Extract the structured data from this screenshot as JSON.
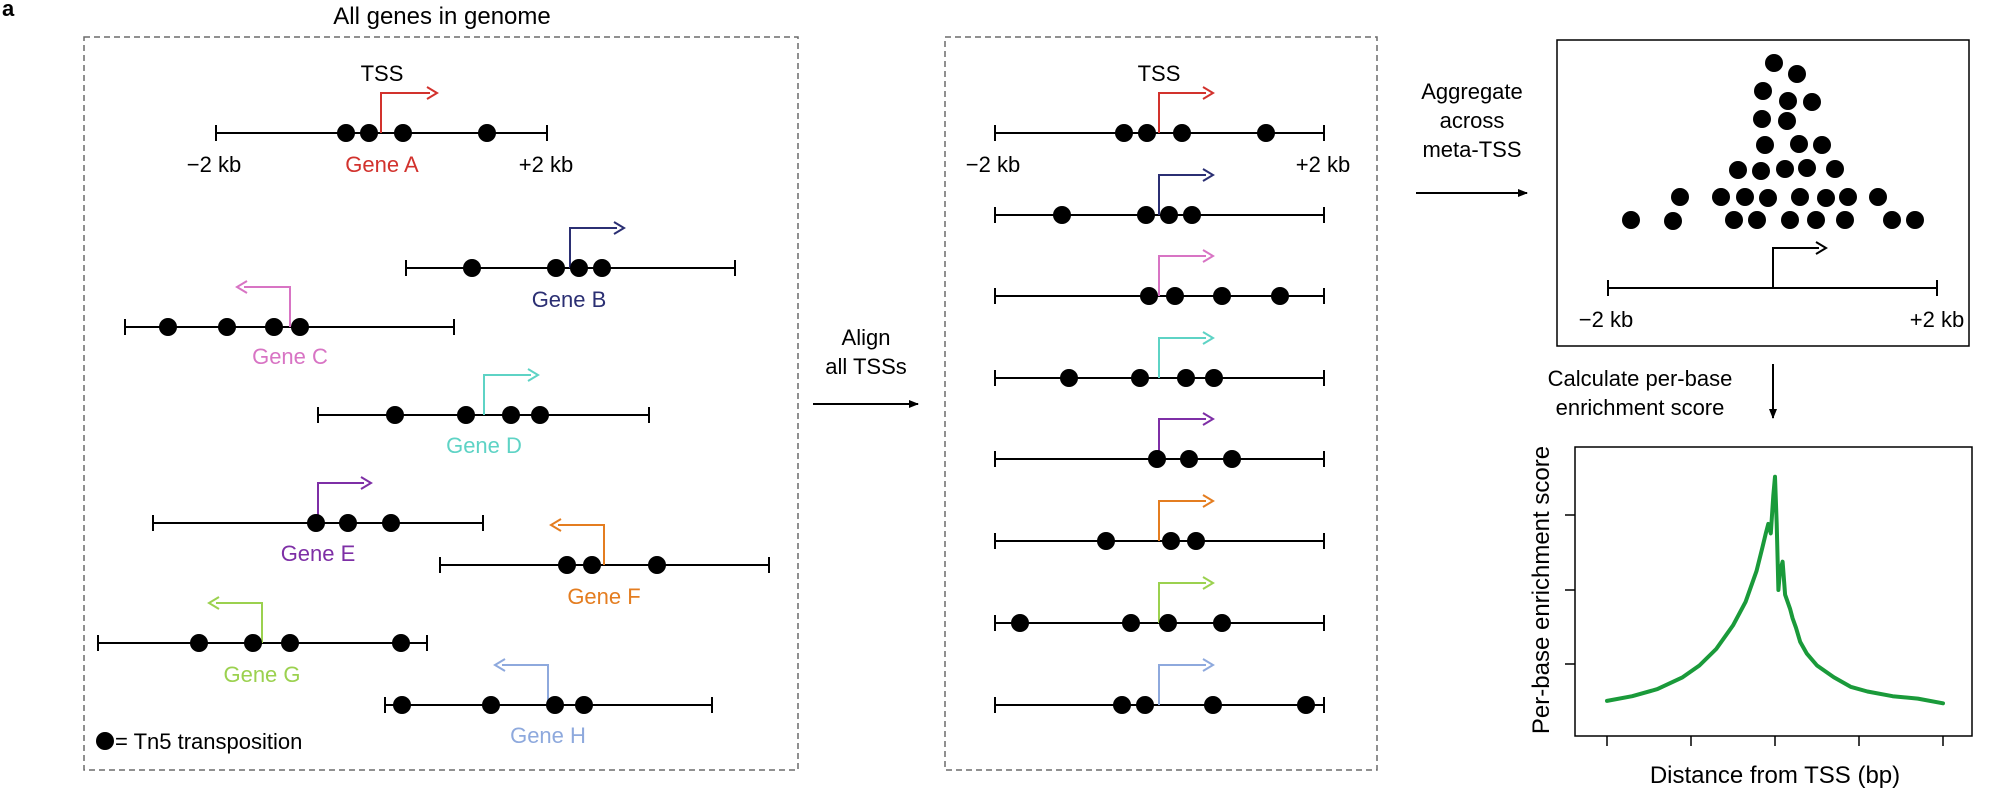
{
  "panel_label": "a",
  "colors": {
    "black": "#000000",
    "gene_a": "#d2322d",
    "gene_b": "#2b2f73",
    "gene_c": "#d874c4",
    "gene_d": "#5ed3c5",
    "gene_e": "#7e2fa6",
    "gene_f": "#e47d20",
    "gene_g": "#9bd14f",
    "gene_h": "#8ea9dd",
    "curve": "#1a9a3a",
    "frame_dashed": "#6b6b6b"
  },
  "genome_panel": {
    "title": "All genes in genome",
    "tss_label": "TSS",
    "left_tick_label": "−2 kb",
    "right_tick_label": "+2 kb",
    "legend_label": "= Tn5 transposition",
    "genes": [
      {
        "label": "Gene A",
        "color_key": "gene_a",
        "direction": "right"
      },
      {
        "label": "Gene B",
        "color_key": "gene_b",
        "direction": "right"
      },
      {
        "label": "Gene C",
        "color_key": "gene_c",
        "direction": "left"
      },
      {
        "label": "Gene D",
        "color_key": "gene_d",
        "direction": "right"
      },
      {
        "label": "Gene E",
        "color_key": "gene_e",
        "direction": "right"
      },
      {
        "label": "Gene F",
        "color_key": "gene_f",
        "direction": "left"
      },
      {
        "label": "Gene G",
        "color_key": "gene_g",
        "direction": "left"
      },
      {
        "label": "Gene H",
        "color_key": "gene_h",
        "direction": "right"
      }
    ]
  },
  "align_step": {
    "line1": "Align",
    "line2": "all TSSs"
  },
  "aligned_panel": {
    "tss_label": "TSS",
    "left_tick_label": "−2 kb",
    "right_tick_label": "+2 kb"
  },
  "aggregate_step": {
    "line1": "Aggregate",
    "line2": "across",
    "line3": "meta-TSS"
  },
  "meta_panel": {
    "left_tick_label": "−2 kb",
    "right_tick_label": "+2 kb"
  },
  "score_step": {
    "line1": "Calculate per-base",
    "line2": "enrichment score"
  },
  "enrichment_plot": {
    "ylabel": "Per-base enrichment score",
    "xlabel": "Distance from TSS (bp)"
  },
  "chart_data": {
    "type": "line",
    "title": "",
    "xlabel": "Distance from TSS (bp)",
    "ylabel": "Per-base enrichment score",
    "xlim": [
      -2000,
      2000
    ],
    "tick_labels_shown": false,
    "series": [
      {
        "x": [
          -2000,
          -1700,
          -1400,
          -1100,
          -900,
          -700,
          -500,
          -350,
          -220,
          -150,
          -110,
          -80,
          -50,
          -20,
          0,
          20,
          40,
          60,
          90,
          120,
          150,
          180,
          210,
          250,
          300,
          380,
          500,
          700,
          900,
          1100,
          1400,
          1700,
          2000
        ],
        "y": [
          0.03,
          0.05,
          0.08,
          0.13,
          0.18,
          0.25,
          0.35,
          0.45,
          0.58,
          0.68,
          0.74,
          0.78,
          0.74,
          0.9,
          0.98,
          0.78,
          0.5,
          0.58,
          0.62,
          0.48,
          0.45,
          0.42,
          0.38,
          0.34,
          0.28,
          0.23,
          0.18,
          0.13,
          0.09,
          0.07,
          0.05,
          0.04,
          0.02
        ]
      }
    ]
  }
}
